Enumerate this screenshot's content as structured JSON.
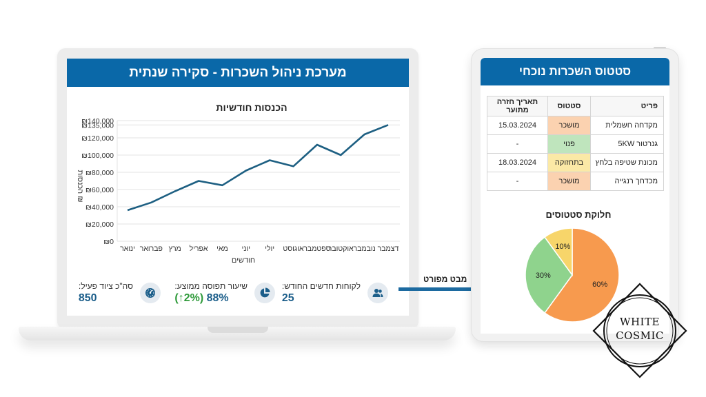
{
  "laptop": {
    "header": {
      "title": "מערכת ניהול השכרות - סקירה שנתית"
    },
    "chart": {
      "title": "הכנסות חודשיות",
      "xlabel": "חודשים",
      "ylabel": "הכנסות ₪",
      "y_ticks": [
        "₪140,000",
        "₪135,000",
        "₪120,000",
        "₪100,000",
        "₪80,000",
        "₪60,000",
        "₪40,000",
        "₪20,000",
        "₪0"
      ],
      "months": [
        "ינואר",
        "פברואר",
        "מרץ",
        "אפריל",
        "מאי",
        "יוני",
        "יולי",
        "אוגוסט",
        "ספטמבר",
        "אוקטובר",
        "נובמבר",
        "דצמבר"
      ],
      "line_color": "#1d5f82"
    },
    "kpis": [
      {
        "icon": "users-icon",
        "label": "לקוחות חדשים החודש:",
        "value": "25"
      },
      {
        "icon": "pie-chart-icon",
        "label": "שיעור תפוסה ממוצע:",
        "value": "88%",
        "delta": "(↑2%)"
      },
      {
        "icon": "gauge-icon",
        "label": "סה\"כ ציוד פעיל:",
        "value": "850"
      }
    ]
  },
  "arrow": {
    "label": "מבט מפורט"
  },
  "tablet": {
    "header": {
      "title": "סטטוס השכרות נוכחי"
    },
    "table": {
      "columns": [
        "פריט",
        "סטטוס",
        "תאריך חזרה מתוער"
      ],
      "rows": [
        {
          "item": "מקדחה חשמלית",
          "status": "מושכר",
          "status_color": "#fbd2b0",
          "date": "15.03.2024"
        },
        {
          "item": "גנרטור 5KW",
          "status": "פנוי",
          "status_color": "#bfe5bd",
          "date": "-"
        },
        {
          "item": "מכונת שטיפה בלחץ",
          "status": "בתחזוקה",
          "status_color": "#fbe9a6",
          "date": "18.03.2024"
        },
        {
          "item": "מכדחך רנגייה",
          "status": "מושכר",
          "status_color": "#fbd2b0",
          "date": "-"
        }
      ]
    },
    "pie": {
      "title": "חלוקת סטטוסים",
      "slices": [
        {
          "label": "60%",
          "value": 60,
          "color": "#f79a4e"
        },
        {
          "label": "30%",
          "value": 30,
          "color": "#8fd38d"
        },
        {
          "label": "10%",
          "value": 10,
          "color": "#f7d56a"
        }
      ]
    }
  },
  "watermark": {
    "line1": "WHITE",
    "line2": "COSMIC"
  },
  "chart_data": [
    {
      "type": "line",
      "title": "הכנסות חודשיות",
      "xlabel": "חודשים",
      "ylabel": "הכנסות ₪",
      "categories": [
        "ינואר",
        "פברואר",
        "מרץ",
        "אפריל",
        "מאי",
        "יוני",
        "יולי",
        "אוגוסט",
        "ספטמבר",
        "אוקטובר",
        "נובמבר",
        "דצמבר"
      ],
      "values": [
        36000,
        45000,
        58000,
        70000,
        65000,
        82000,
        94000,
        87000,
        112000,
        100000,
        124000,
        135000
      ],
      "ylim": [
        0,
        140000
      ],
      "y_ticks": [
        0,
        20000,
        40000,
        60000,
        80000,
        100000,
        120000,
        135000,
        140000
      ],
      "grid": true
    },
    {
      "type": "pie",
      "title": "חלוקת סטטוסים",
      "categories": [
        "מושכר",
        "פנוי",
        "בתחזוקה"
      ],
      "values": [
        60,
        30,
        10
      ],
      "labels": [
        "60%",
        "30%",
        "10%"
      ]
    }
  ]
}
